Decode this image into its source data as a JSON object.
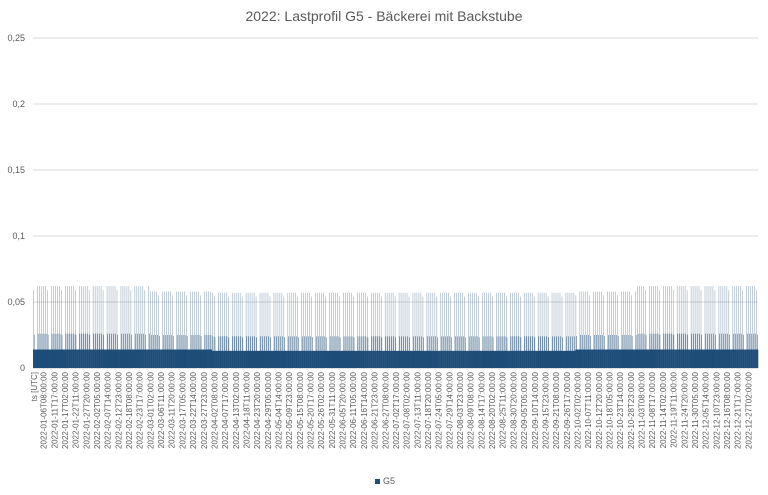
{
  "chart_data": {
    "type": "bar",
    "title": "2022: Lastprofil G5 - Bäckerei mit Backstube",
    "xlabel": "ts [UTC]",
    "ylabel": "",
    "ylim": [
      0,
      0.25
    ],
    "yticks": [
      "0",
      "0,05",
      "0,1",
      "0,15",
      "0,2",
      "0,25"
    ],
    "grid": true,
    "legend_position": "bottom",
    "color": "#1f4e79",
    "x_tick_labels": [
      "2022-01-06T08:00:00",
      "2022-01-11T17:00:00",
      "2022-01-17T02:00:00",
      "2022-01-22T11:00:00",
      "2022-01-27T20:00:00",
      "2022-02-02T05:00:00",
      "2022-02-07T14:00:00",
      "2022-02-12T23:00:00",
      "2022-02-18T08:00:00",
      "2022-02-23T17:00:00",
      "2022-03-01T02:00:00",
      "2022-03-06T11:00:00",
      "2022-03-11T20:00:00",
      "2022-03-17T05:00:00",
      "2022-03-22T14:00:00",
      "2022-03-27T23:00:00",
      "2022-04-02T08:00:00",
      "2022-04-07T17:00:00",
      "2022-04-13T02:00:00",
      "2022-04-18T11:00:00",
      "2022-04-23T20:00:00",
      "2022-04-29T05:00:00",
      "2022-05-04T14:00:00",
      "2022-05-09T23:00:00",
      "2022-05-15T08:00:00",
      "2022-05-20T17:00:00",
      "2022-05-26T02:00:00",
      "2022-05-31T11:00:00",
      "2022-06-05T20:00:00",
      "2022-06-11T05:00:00",
      "2022-06-16T14:00:00",
      "2022-06-21T23:00:00",
      "2022-06-27T08:00:00",
      "2022-07-02T17:00:00",
      "2022-07-08T02:00:00",
      "2022-07-13T11:00:00",
      "2022-07-18T20:00:00",
      "2022-07-24T05:00:00",
      "2022-07-29T14:00:00",
      "2022-08-03T23:00:00",
      "2022-08-09T08:00:00",
      "2022-08-14T17:00:00",
      "2022-08-20T02:00:00",
      "2022-08-25T11:00:00",
      "2022-08-30T20:00:00",
      "2022-09-05T05:00:00",
      "2022-09-10T14:00:00",
      "2022-09-15T23:00:00",
      "2022-09-21T08:00:00",
      "2022-09-26T17:00:00",
      "2022-10-02T02:00:00",
      "2022-10-07T11:00:00",
      "2022-10-12T20:00:00",
      "2022-10-18T05:00:00",
      "2022-10-23T14:00:00",
      "2022-10-28T23:00:00",
      "2022-11-03T08:00:00",
      "2022-11-08T17:00:00",
      "2022-11-14T02:00:00",
      "2022-11-19T11:00:00",
      "2022-11-24T20:00:00",
      "2022-11-30T05:00:00",
      "2022-12-05T14:00:00",
      "2022-12-10T23:00:00",
      "2022-12-16T08:00:00",
      "2022-12-21T17:00:00",
      "2022-12-27T02:00:00"
    ],
    "x_range": [
      "2022-01-01T00:00:00",
      "2022-12-31T23:00:00"
    ],
    "series": [
      {
        "name": "G5",
        "profile": [
          {
            "month": "2022-01",
            "workday_peak": 0.062,
            "baseline": 0.014
          },
          {
            "month": "2022-02",
            "workday_peak": 0.062,
            "baseline": 0.014
          },
          {
            "month": "2022-03",
            "workday_peak": 0.058,
            "baseline": 0.014
          },
          {
            "month": "2022-04",
            "workday_peak": 0.057,
            "baseline": 0.013
          },
          {
            "month": "2022-05",
            "workday_peak": 0.057,
            "baseline": 0.013
          },
          {
            "month": "2022-06",
            "workday_peak": 0.057,
            "baseline": 0.013
          },
          {
            "month": "2022-07",
            "workday_peak": 0.057,
            "baseline": 0.013
          },
          {
            "month": "2022-08",
            "workday_peak": 0.057,
            "baseline": 0.013
          },
          {
            "month": "2022-09",
            "workday_peak": 0.057,
            "baseline": 0.013
          },
          {
            "month": "2022-10",
            "workday_peak": 0.058,
            "baseline": 0.014
          },
          {
            "month": "2022-11",
            "workday_peak": 0.062,
            "baseline": 0.014
          },
          {
            "month": "2022-12",
            "workday_peak": 0.062,
            "baseline": 0.014
          }
        ]
      }
    ]
  }
}
